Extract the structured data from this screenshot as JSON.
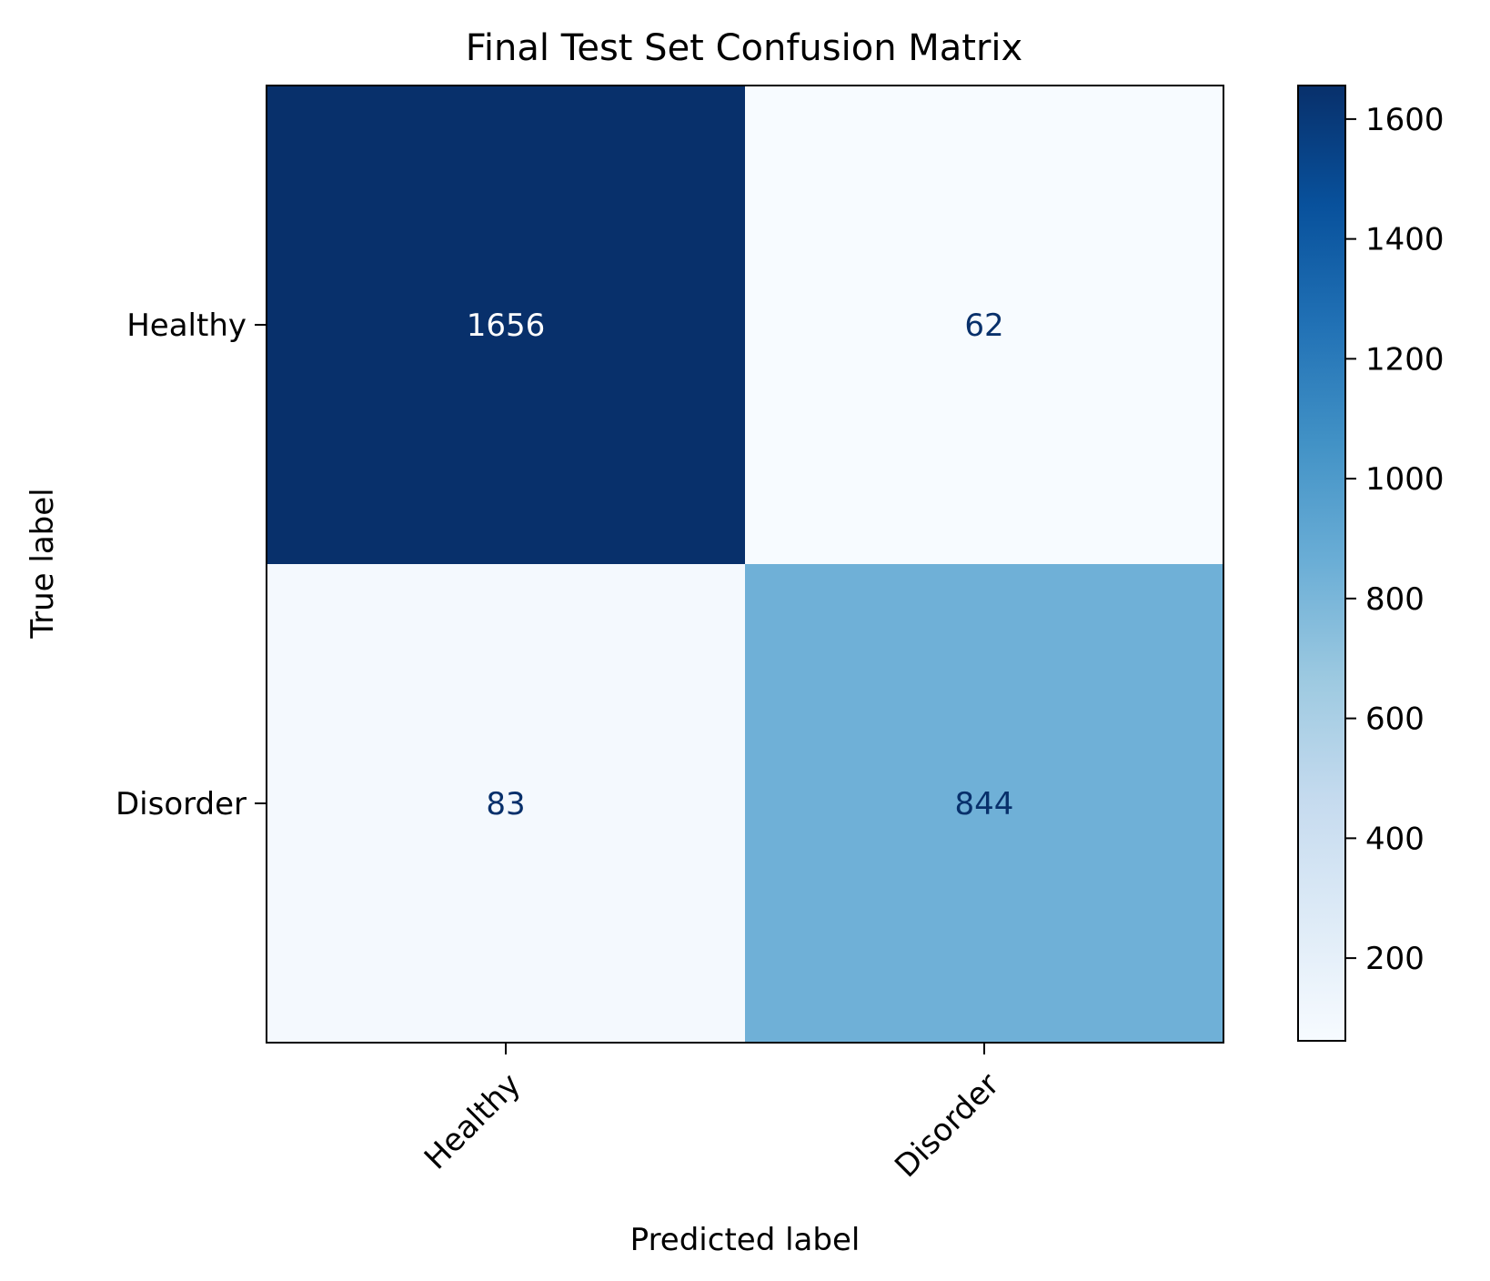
{
  "chart_data": {
    "type": "heatmap",
    "title": "Final Test Set Confusion Matrix",
    "xlabel": "Predicted label",
    "ylabel": "True label",
    "x_categories": [
      "Healthy",
      "Disorder"
    ],
    "y_categories": [
      "Healthy",
      "Disorder"
    ],
    "values": [
      [
        1656,
        62
      ],
      [
        83,
        844
      ]
    ],
    "colormap": "Blues",
    "colorbar": {
      "min": 62,
      "max": 1656,
      "ticks": [
        200,
        400,
        600,
        800,
        1000,
        1200,
        1400,
        1600
      ]
    },
    "text_colors": {
      "on_dark": "#ffffff",
      "on_light": "#08306b"
    },
    "grid": false
  }
}
